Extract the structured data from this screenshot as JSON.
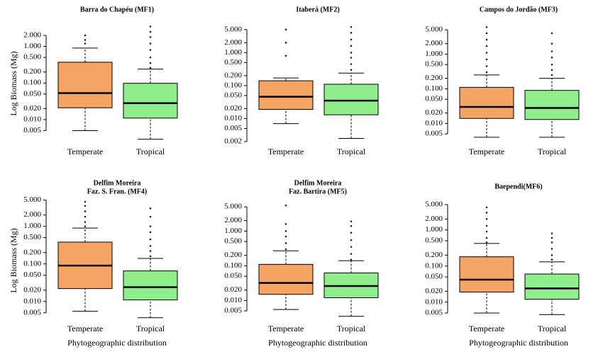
{
  "chart_data": [
    {
      "type": "box",
      "title": [
        "Barra do Chapéu (MF1)"
      ],
      "y_label": "Log Biomass (Mg)",
      "categories": [
        "Temperate",
        "Tropical"
      ],
      "log_scale": true,
      "ylim": [
        0.0025,
        3.9
      ],
      "yticks": [
        0.005,
        {
          "value": 0.01,
          "label": "0.010"
        },
        {
          "value": 0.02,
          "label": "0.020"
        },
        {
          "value": 0.05,
          "label": "0.050"
        },
        {
          "value": 0.1,
          "label": "0.100"
        },
        {
          "value": 0.2,
          "label": "0.200"
        },
        {
          "value": 0.5,
          "label": "0.500"
        },
        {
          "value": 1,
          "label": "1.000"
        },
        {
          "value": 2,
          "label": "2.000"
        }
      ],
      "boxes": [
        {
          "color": "#f5a464",
          "whisker_low": 0.005,
          "q1": 0.021,
          "median": 0.053,
          "q3": 0.37,
          "whisker_high": 0.9,
          "outliers": [
            1.2,
            1.5,
            2.0
          ]
        },
        {
          "color": "#90ee8c",
          "whisker_low": 0.0029,
          "q1": 0.011,
          "median": 0.028,
          "q3": 0.098,
          "whisker_high": 0.24,
          "outliers": [
            0.26,
            0.35,
            0.5,
            0.8,
            1.2,
            1.8,
            2.5,
            3.5
          ]
        }
      ]
    },
    {
      "type": "box",
      "title": [
        "Itaberá (MF2)"
      ],
      "categories": [
        "Temperate",
        "Tropical"
      ],
      "log_scale": true,
      "ylim": [
        0.002,
        7
      ],
      "yticks": [
        0.002,
        0.005,
        {
          "value": 0.01,
          "label": "0.010"
        },
        {
          "value": 0.02,
          "label": "0.020"
        },
        {
          "value": 0.05,
          "label": "0.050"
        },
        {
          "value": 0.1,
          "label": "0.100"
        },
        {
          "value": 0.2,
          "label": "0.200"
        },
        {
          "value": 0.5,
          "label": "0.500"
        },
        {
          "value": 1,
          "label": "1.000"
        },
        {
          "value": 2,
          "label": "2.000"
        },
        {
          "value": 5,
          "label": "5.000"
        }
      ],
      "boxes": [
        {
          "color": "#f5a464",
          "whisker_low": 0.007,
          "q1": 0.019,
          "median": 0.046,
          "q3": 0.14,
          "whisker_high": 0.17,
          "outliers": [
            0.8,
            2.0,
            5.0
          ]
        },
        {
          "color": "#90ee8c",
          "whisker_low": 0.0025,
          "q1": 0.013,
          "median": 0.035,
          "q3": 0.11,
          "whisker_high": 0.24,
          "outliers": [
            0.3,
            0.45,
            0.7,
            1.0,
            1.6,
            2.5,
            4.0,
            6.0
          ]
        }
      ]
    },
    {
      "type": "box",
      "title": [
        "Campos do Jordão (MF3)"
      ],
      "categories": [
        "Temperate",
        "Tropical"
      ],
      "log_scale": true,
      "ylim": [
        0.003,
        7
      ],
      "yticks": [
        0.005,
        {
          "value": 0.01,
          "label": "0.010"
        },
        {
          "value": 0.02,
          "label": "0.020"
        },
        {
          "value": 0.05,
          "label": "0.050"
        },
        {
          "value": 0.1,
          "label": "0.100"
        },
        {
          "value": 0.2,
          "label": "0.200"
        },
        {
          "value": 0.5,
          "label": "0.500"
        },
        {
          "value": 1,
          "label": "1.000"
        },
        {
          "value": 2,
          "label": "2.000"
        },
        {
          "value": 5,
          "label": "5.000"
        }
      ],
      "boxes": [
        {
          "color": "#f5a464",
          "whisker_low": 0.004,
          "q1": 0.014,
          "median": 0.03,
          "q3": 0.11,
          "whisker_high": 0.25,
          "outliers": [
            0.3,
            0.45,
            0.7,
            1.1,
            1.7,
            2.6,
            4.0,
            6.0
          ]
        },
        {
          "color": "#90ee8c",
          "whisker_low": 0.004,
          "q1": 0.013,
          "median": 0.028,
          "q3": 0.09,
          "whisker_high": 0.2,
          "outliers": [
            0.25,
            0.35,
            0.5,
            0.8,
            1.2,
            2.0,
            4.0
          ]
        }
      ]
    },
    {
      "type": "box",
      "title": [
        "Delfim Moreira",
        "Faz. S. Fran. (MF4)"
      ],
      "y_label": "Log Biomass (Mg)",
      "x_label": "Phytogeographic distribution",
      "categories": [
        "Temperate",
        "Tropical"
      ],
      "log_scale": true,
      "ylim": [
        0.0035,
        4.5
      ],
      "yticks": [
        0.005,
        {
          "value": 0.01,
          "label": "0.010"
        },
        {
          "value": 0.02,
          "label": "0.020"
        },
        {
          "value": 0.05,
          "label": "0.050"
        },
        {
          "value": 0.1,
          "label": "0.100"
        },
        {
          "value": 0.2,
          "label": "0.200"
        },
        {
          "value": 0.5,
          "label": "0.500"
        },
        {
          "value": 1,
          "label": "1.000"
        },
        {
          "value": 2,
          "label": "2.000"
        },
        {
          "value": 5,
          "label": "5.000"
        }
      ],
      "boxes": [
        {
          "color": "#f5a464",
          "whisker_low": 0.0055,
          "q1": 0.022,
          "median": 0.09,
          "q3": 0.38,
          "whisker_high": 0.9,
          "outliers": [
            1.0,
            1.3,
            1.8,
            2.5,
            3.5,
            4.5
          ]
        },
        {
          "color": "#90ee8c",
          "whisker_low": 0.0037,
          "q1": 0.011,
          "median": 0.024,
          "q3": 0.065,
          "whisker_high": 0.14,
          "outliers": [
            0.16,
            0.22,
            0.3,
            0.45,
            0.7,
            1.0,
            1.8,
            3.0
          ]
        }
      ]
    },
    {
      "type": "box",
      "title": [
        "Delfim Moreira",
        "Faz. Bartira (MF5)"
      ],
      "x_label": "Phytogeographic distribution",
      "categories": [
        "Temperate",
        "Tropical"
      ],
      "log_scale": true,
      "ylim": [
        0.003,
        7
      ],
      "yticks": [
        0.005,
        {
          "value": 0.01,
          "label": "0.010"
        },
        {
          "value": 0.02,
          "label": "0.020"
        },
        {
          "value": 0.05,
          "label": "0.050"
        },
        {
          "value": 0.1,
          "label": "0.100"
        },
        {
          "value": 0.2,
          "label": "0.200"
        },
        {
          "value": 0.5,
          "label": "0.500"
        },
        {
          "value": 1,
          "label": "1.000"
        },
        {
          "value": 2,
          "label": "2.000"
        },
        {
          "value": 5,
          "label": "5.000"
        }
      ],
      "boxes": [
        {
          "color": "#f5a464",
          "whisker_low": 0.0055,
          "q1": 0.015,
          "median": 0.032,
          "q3": 0.11,
          "whisker_high": 0.27,
          "outliers": [
            0.3,
            0.45,
            0.7,
            1.0,
            1.6,
            5.5
          ]
        },
        {
          "color": "#90ee8c",
          "whisker_low": 0.0035,
          "q1": 0.012,
          "median": 0.026,
          "q3": 0.062,
          "whisker_high": 0.14,
          "outliers": [
            0.15,
            0.22,
            0.35,
            0.55,
            0.9,
            1.4,
            1.9
          ]
        }
      ]
    },
    {
      "type": "box",
      "title": [
        "Baependi(MF6)"
      ],
      "x_label": "Phytogeographic distribution",
      "categories": [
        "Temperate",
        "Tropical"
      ],
      "log_scale": true,
      "ylim": [
        0.0035,
        6
      ],
      "yticks": [
        0.005,
        {
          "value": 0.01,
          "label": "0.010"
        },
        {
          "value": 0.02,
          "label": "0.020"
        },
        {
          "value": 0.05,
          "label": "0.050"
        },
        {
          "value": 0.1,
          "label": "0.100"
        },
        {
          "value": 0.2,
          "label": "0.200"
        },
        {
          "value": 0.5,
          "label": "0.500"
        },
        {
          "value": 1,
          "label": "1.000"
        },
        {
          "value": 2,
          "label": "2.000"
        },
        {
          "value": 5,
          "label": "5.000"
        }
      ],
      "boxes": [
        {
          "color": "#f5a464",
          "whisker_low": 0.005,
          "q1": 0.019,
          "median": 0.042,
          "q3": 0.18,
          "whisker_high": 0.42,
          "outliers": [
            0.45,
            0.6,
            0.9,
            1.3,
            2.0,
            3.0,
            4.2
          ]
        },
        {
          "color": "#90ee8c",
          "whisker_low": 0.0045,
          "q1": 0.012,
          "median": 0.024,
          "q3": 0.06,
          "whisker_high": 0.13,
          "outliers": [
            0.15,
            0.2,
            0.3,
            0.45,
            0.6,
            0.8
          ]
        }
      ]
    }
  ]
}
